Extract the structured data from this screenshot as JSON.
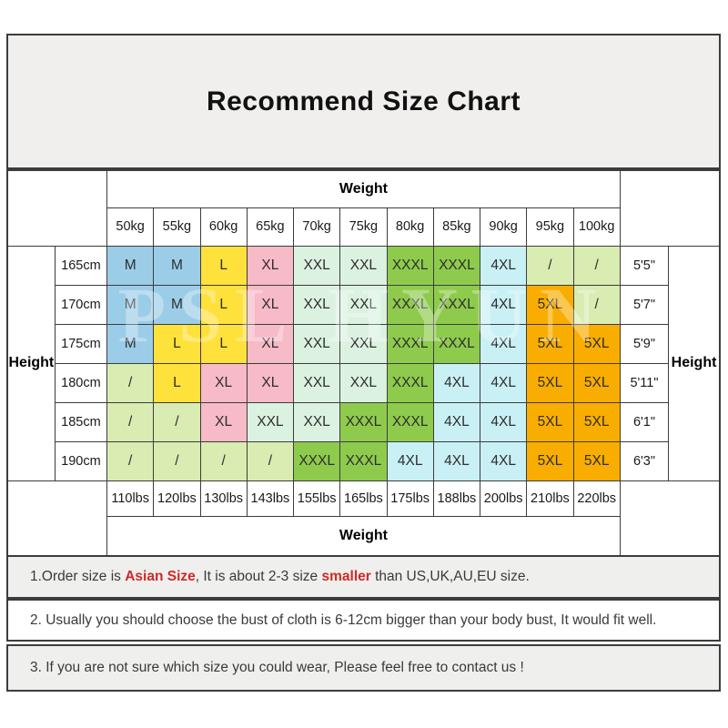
{
  "title": "Recommend Size Chart",
  "watermark_text": "PSL HYUN",
  "table": {
    "weight_header": "Weight",
    "weight_footer": "Weight",
    "height_label_left": "Height",
    "height_label_right": "Height",
    "kg_labels": [
      "50kg",
      "55kg",
      "60kg",
      "65kg",
      "70kg",
      "75kg",
      "80kg",
      "85kg",
      "90kg",
      "95kg",
      "100kg"
    ],
    "lbs_labels": [
      "110lbs",
      "120lbs",
      "130lbs",
      "143lbs",
      "155lbs",
      "165lbs",
      "175lbs",
      "188lbs",
      "200lbs",
      "210lbs",
      "220lbs"
    ],
    "size_colors": {
      "M": "#9ccde8",
      "L": "#ffe13b",
      "XL": "#f7bac7",
      "XXL": "#dcf2e1",
      "XXXL": "#8ecb4d",
      "4XL": "#c9f0f5",
      "5XL": "#f9ad01",
      "/": "#d9ecb2"
    },
    "rows": [
      {
        "cm": "165cm",
        "ft": "5'5\"",
        "sizes": [
          "M",
          "M",
          "L",
          "XL",
          "XXL",
          "XXL",
          "XXXL",
          "XXXL",
          "4XL",
          "/",
          "/"
        ]
      },
      {
        "cm": "170cm",
        "ft": "5'7\"",
        "sizes": [
          "M",
          "M",
          "L",
          "XL",
          "XXL",
          "XXL",
          "XXXL",
          "XXXL",
          "4XL",
          "5XL",
          "/"
        ]
      },
      {
        "cm": "175cm",
        "ft": "5'9\"",
        "sizes": [
          "M",
          "L",
          "L",
          "XL",
          "XXL",
          "XXL",
          "XXXL",
          "XXXL",
          "4XL",
          "5XL",
          "5XL"
        ]
      },
      {
        "cm": "180cm",
        "ft": "5'11\"",
        "sizes": [
          "/",
          "L",
          "XL",
          "XL",
          "XXL",
          "XXL",
          "XXXL",
          "4XL",
          "4XL",
          "5XL",
          "5XL"
        ]
      },
      {
        "cm": "185cm",
        "ft": "6'1\"",
        "sizes": [
          "/",
          "/",
          "XL",
          "XXL",
          "XXL",
          "XXXL",
          "XXXL",
          "4XL",
          "4XL",
          "5XL",
          "5XL"
        ]
      },
      {
        "cm": "190cm",
        "ft": "6'3\"",
        "sizes": [
          "/",
          "/",
          "/",
          "/",
          "XXXL",
          "XXXL",
          "4XL",
          "4XL",
          "4XL",
          "5XL",
          "5XL"
        ]
      }
    ]
  },
  "notes": [
    {
      "parts": [
        {
          "text": "1.Order size is ",
          "red": false
        },
        {
          "text": "Asian Size",
          "red": true
        },
        {
          "text": ", It is about 2-3 size ",
          "red": false
        },
        {
          "text": "smaller",
          "red": true
        },
        {
          "text": " than US,UK,AU,EU size.",
          "red": false
        }
      ]
    },
    {
      "parts": [
        {
          "text": "2. Usually you should choose the bust of cloth is 6-12cm bigger than your body bust, It would fit well.",
          "red": false
        }
      ]
    },
    {
      "parts": [
        {
          "text": "3. If you are not sure which size you could wear, Please feel free to contact us !",
          "red": false
        }
      ]
    }
  ]
}
